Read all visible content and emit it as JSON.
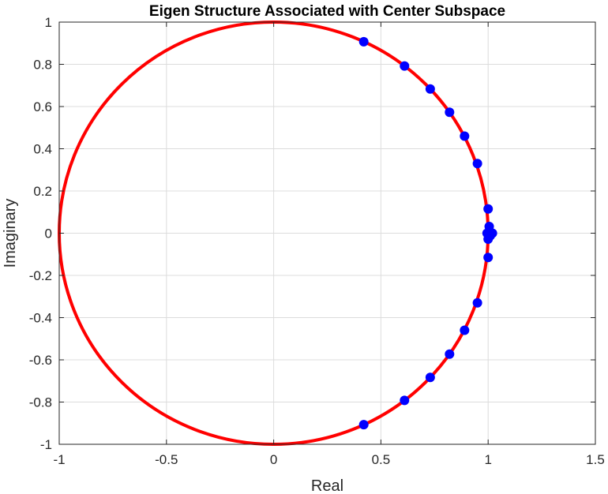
{
  "chart_data": {
    "type": "scatter",
    "title": "Eigen Structure Associated with Center Subspace",
    "xlabel": "Real",
    "ylabel": "Imaginary",
    "xlim": [
      -1,
      1.5
    ],
    "ylim": [
      -1,
      1
    ],
    "xticks": [
      -1,
      -0.5,
      0,
      0.5,
      1,
      1.5
    ],
    "xtick_labels": [
      "-1",
      "-0.5",
      "0",
      "0.5",
      "1",
      "1.5"
    ],
    "yticks": [
      -1,
      -0.8,
      -0.6,
      -0.4,
      -0.2,
      0,
      0.2,
      0.4,
      0.6,
      0.8,
      1
    ],
    "ytick_labels": [
      "-1",
      "-0.8",
      "-0.6",
      "-0.4",
      "-0.2",
      "0",
      "0.2",
      "0.4",
      "0.6",
      "0.8",
      "1"
    ],
    "grid": true,
    "unit_circle": {
      "center": [
        0,
        0
      ],
      "radius": 1,
      "color": "#ff0000"
    },
    "points_color": "#0000ff",
    "points": [
      [
        0.42,
        0.907
      ],
      [
        0.61,
        0.792
      ],
      [
        0.73,
        0.683
      ],
      [
        0.82,
        0.573
      ],
      [
        0.89,
        0.46
      ],
      [
        0.95,
        0.33
      ],
      [
        1.0,
        0.115
      ],
      [
        1.005,
        0.032
      ],
      [
        0.995,
        0.0
      ],
      [
        1.02,
        0.0
      ],
      [
        1.01,
        -0.012
      ],
      [
        1.0,
        -0.028
      ],
      [
        1.0,
        -0.115
      ],
      [
        0.95,
        -0.33
      ],
      [
        0.89,
        -0.46
      ],
      [
        0.82,
        -0.573
      ],
      [
        0.73,
        -0.683
      ],
      [
        0.61,
        -0.792
      ],
      [
        0.42,
        -0.907
      ]
    ]
  }
}
